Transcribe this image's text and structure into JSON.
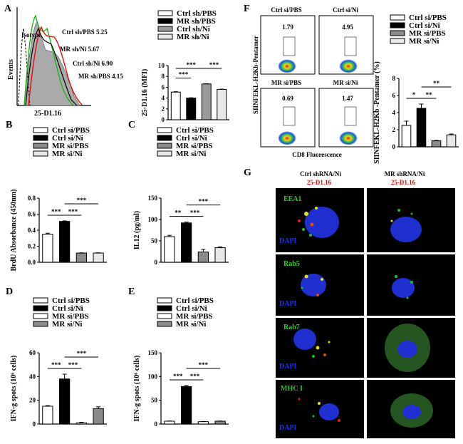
{
  "panels": {
    "A": {
      "letter": "A",
      "histogram": {
        "ylabel": "Events",
        "xlabel": "25-D1.16",
        "annotations": [
          {
            "text": "Isotype"
          },
          {
            "text": "Ctrl sh/PBS 5.25"
          },
          {
            "text": "MR sh/Ni 5.67"
          },
          {
            "text": "Ctrl sh/Ni 6.90"
          },
          {
            "text": "MR sh/PBS  4.15"
          }
        ]
      }
    },
    "B": {
      "letter": "B"
    },
    "C": {
      "letter": "C"
    },
    "D": {
      "letter": "D"
    },
    "E": {
      "letter": "E"
    },
    "F": {
      "letter": "F",
      "flow": {
        "ylabel": "SIINFEKL-H2Kb-Pentamer",
        "xlabel": "CD8 Fluorescence",
        "plots": [
          {
            "label": "Ctrl si/PBS",
            "value": "1.79"
          },
          {
            "label": "Ctrl si/Ni",
            "value": "4.95"
          },
          {
            "label": "MR si/PBS",
            "value": "0.69"
          },
          {
            "label": "MR si/Ni",
            "value": "1.47"
          }
        ]
      }
    },
    "G": {
      "letter": "G",
      "col_headers": [
        "Ctrl shRNA/Ni",
        "MR shRNA/Ni"
      ],
      "sub_header": "25-D1.16",
      "rows": [
        {
          "marker": "EEA1",
          "dapi": "DAPI"
        },
        {
          "marker": "Rab5",
          "dapi": "DAPI"
        },
        {
          "marker": "Rab7",
          "dapi": "DAPI"
        },
        {
          "marker": "MHC I",
          "dapi": "DAPI"
        }
      ]
    }
  },
  "chart_data": [
    {
      "id": "A-bar",
      "type": "bar",
      "legend": [
        "Ctrl sh/PBS",
        "MR sh/PBS",
        "Ctrl sh/Ni",
        "MR sh/Ni"
      ],
      "fills": [
        "#ffffff",
        "#000000",
        "#9a9a9a",
        "#e8e8e8"
      ],
      "values": [
        5.1,
        4.0,
        6.6,
        5.6
      ],
      "errors": [
        0.08,
        0.06,
        0.05,
        0.05
      ],
      "ylabel": "25-D1.16 (MFI)",
      "ylim": [
        0,
        10
      ],
      "yticks": [
        "0",
        "2",
        "4",
        "6",
        "8",
        "10"
      ],
      "sig": [
        {
          "from": 0,
          "to": 1,
          "label": "***",
          "level": 0
        },
        {
          "from": 0,
          "to": 2,
          "label": "***",
          "level": 1
        },
        {
          "from": 2,
          "to": 3,
          "label": "***",
          "level": 1
        }
      ]
    },
    {
      "id": "B-bar",
      "type": "bar",
      "legend": [
        "Ctrl si/PBS",
        "Ctrl si/Ni",
        "MR si/PBS",
        "MR si/Ni"
      ],
      "fills": [
        "#ffffff",
        "#000000",
        "#8a8a8a",
        "#e8e8e8"
      ],
      "values": [
        0.35,
        0.51,
        0.115,
        0.115
      ],
      "errors": [
        0.012,
        0.006,
        0.003,
        0.003
      ],
      "ylabel": "BrdU Absorbance (450nm)",
      "ylim": [
        0,
        0.8
      ],
      "yticks": [
        "0.0",
        "0.2",
        "0.4",
        "0.6",
        "0.8"
      ],
      "sig": [
        {
          "from": 0,
          "to": 1,
          "label": "***",
          "level": 0
        },
        {
          "from": 1,
          "to": 2,
          "label": "***",
          "level": 0
        },
        {
          "from": 1,
          "to": 3,
          "label": "***",
          "level": 1
        }
      ]
    },
    {
      "id": "C-bar",
      "type": "bar",
      "legend": [
        "Ctrl si/PBS",
        "Ctrl si/Ni",
        "MR si/PBS",
        "MR si/Ni"
      ],
      "fills": [
        "#ffffff",
        "#000000",
        "#8a8a8a",
        "#e8e8e8"
      ],
      "values": [
        60,
        92,
        24,
        34
      ],
      "errors": [
        3,
        2,
        6,
        2
      ],
      "ylabel": "IL12 (pg/ml)",
      "ylim": [
        0,
        150
      ],
      "yticks": [
        "0",
        "50",
        "100",
        "150"
      ],
      "sig": [
        {
          "from": 0,
          "to": 1,
          "label": "**",
          "level": 0
        },
        {
          "from": 1,
          "to": 2,
          "label": "***",
          "level": 0
        },
        {
          "from": 1,
          "to": 3,
          "label": "***",
          "level": 1
        }
      ]
    },
    {
      "id": "D-bar",
      "type": "bar",
      "legend": [
        "Ctrl si/PBS",
        "Ctrl si/Ni",
        "MR si/PBS",
        "MR si/Ni"
      ],
      "fills": [
        "#ffffff",
        "#000000",
        "#ffffff",
        "#8a8a8a"
      ],
      "values": [
        15,
        38,
        1,
        13
      ],
      "errors": [
        0.5,
        4,
        0.5,
        1.5
      ],
      "ylabel": "IFN-g spots (10⁶ cells)",
      "ylim": [
        0,
        60
      ],
      "yticks": [
        "0",
        "20",
        "40",
        "60"
      ],
      "sig": [
        {
          "from": 0,
          "to": 1,
          "label": "***",
          "level": 0
        },
        {
          "from": 1,
          "to": 2,
          "label": "***",
          "level": 0
        },
        {
          "from": 1,
          "to": 3,
          "label": "***",
          "level": 1
        }
      ]
    },
    {
      "id": "E-bar",
      "type": "bar",
      "legend": [
        "Ctrl si/PBS",
        "Ctrl si/Ni",
        "MR si/PBS",
        "MR si/Ni"
      ],
      "fills": [
        "#ffffff",
        "#000000",
        "#ffffff",
        "#8a8a8a"
      ],
      "values": [
        6,
        79,
        5,
        6
      ],
      "errors": [
        0.5,
        2,
        0.5,
        0.5
      ],
      "ylabel": "IFN-g spots (10⁶ cells)",
      "ylim": [
        0,
        150
      ],
      "yticks": [
        "0",
        "50",
        "100",
        "150"
      ],
      "sig": [
        {
          "from": 0,
          "to": 1,
          "label": "***",
          "level": 0
        },
        {
          "from": 1,
          "to": 2,
          "label": "***",
          "level": 0
        },
        {
          "from": 1,
          "to": 3,
          "label": "***",
          "level": 1
        }
      ]
    },
    {
      "id": "F-bar",
      "type": "bar",
      "legend": [
        "Ctrl si/PBS",
        "Ctrl si/Ni",
        "MR si/PBS",
        "MR si/Ni"
      ],
      "fills": [
        "#ffffff",
        "#000000",
        "#8a8a8a",
        "#e8e8e8"
      ],
      "values": [
        2.5,
        4.5,
        0.7,
        1.4
      ],
      "errors": [
        0.5,
        0.5,
        0.05,
        0.1
      ],
      "ylabel": "SIINFEKL-H2Kb -Pentamer (%)",
      "ylim": [
        0,
        8
      ],
      "yticks": [
        "0",
        "2",
        "4",
        "6",
        "8"
      ],
      "sig": [
        {
          "from": 0,
          "to": 1,
          "label": "*",
          "level": 0
        },
        {
          "from": 1,
          "to": 2,
          "label": "**",
          "level": 0
        },
        {
          "from": 1,
          "to": 3,
          "label": "**",
          "level": 1
        }
      ]
    }
  ]
}
